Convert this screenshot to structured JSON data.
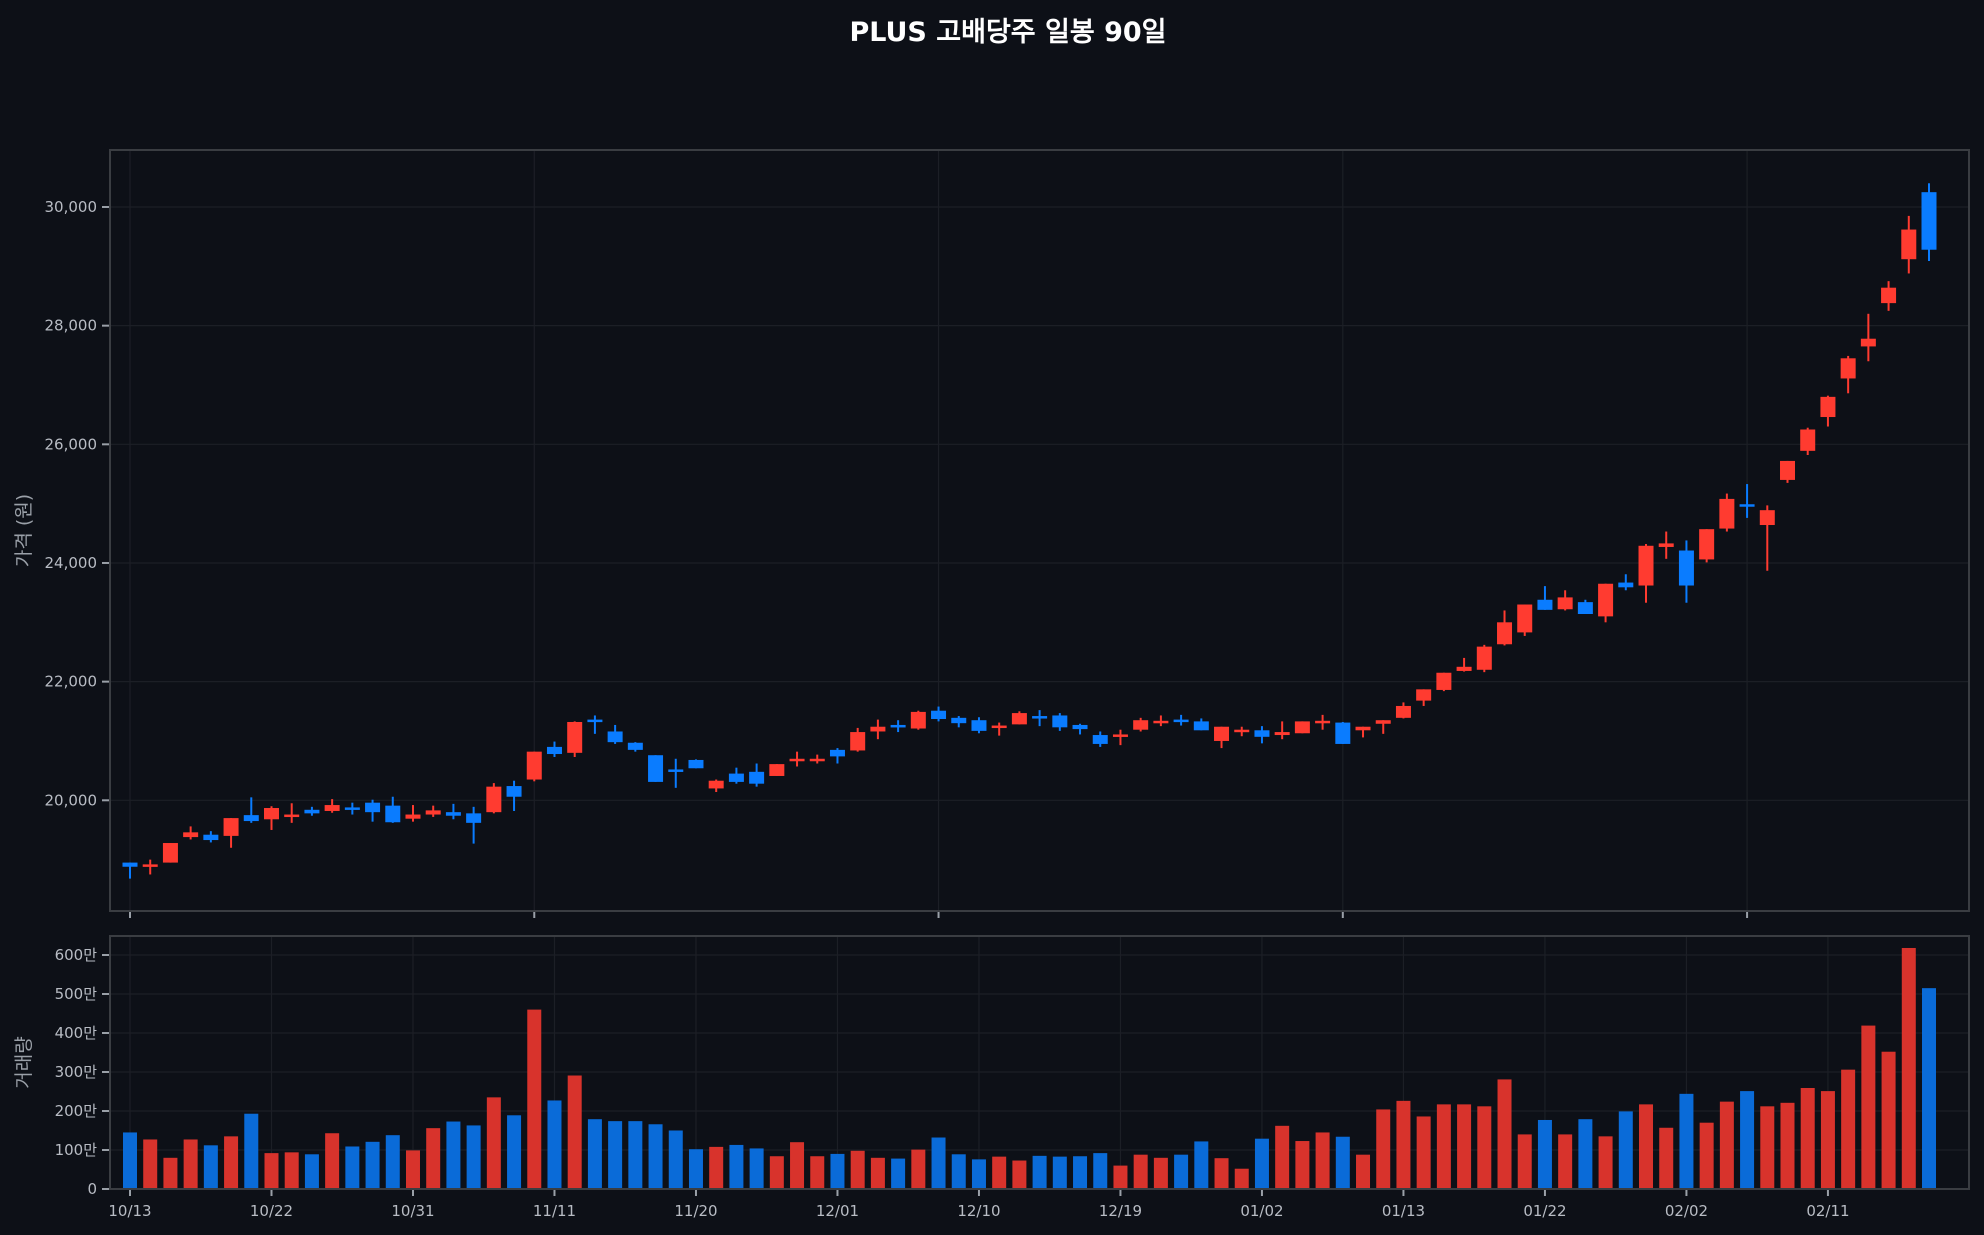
{
  "title": "PLUS 고배당주 일봉 90일",
  "colors": {
    "up": "#ff3b30",
    "down": "#0a7cff",
    "vol_up": "#d8332c",
    "vol_down": "#0a6bd8",
    "background": "#0d1017",
    "frame": "#3a3d42",
    "grid": "#1c1f26"
  },
  "chart_data": [
    {
      "type": "candlestick",
      "title": "PLUS 고배당주 일봉 90일",
      "ylabel": "가격 (원)",
      "yticks": [
        20000,
        22000,
        24000,
        26000,
        28000,
        30000
      ],
      "ytick_labels": [
        "20,000",
        "22,000",
        "24,000",
        "26,000",
        "28,000",
        "30,000"
      ],
      "ylim": [
        18100,
        31000
      ],
      "grid": true,
      "ohlc": [
        [
          18950,
          18950,
          18680,
          18880
        ],
        [
          18880,
          19000,
          18750,
          18920
        ],
        [
          18950,
          19280,
          18950,
          19280
        ],
        [
          19380,
          19560,
          19340,
          19460
        ],
        [
          19420,
          19480,
          19290,
          19330
        ],
        [
          19400,
          19700,
          19200,
          19700
        ],
        [
          19750,
          20050,
          19620,
          19650
        ],
        [
          19680,
          19900,
          19500,
          19870
        ],
        [
          19760,
          19950,
          19620,
          19760
        ],
        [
          19840,
          19890,
          19740,
          19780
        ],
        [
          19820,
          20020,
          19790,
          19920
        ],
        [
          19880,
          19960,
          19760,
          19860
        ],
        [
          19960,
          20010,
          19640,
          19800
        ],
        [
          19910,
          20060,
          19620,
          19630
        ],
        [
          19690,
          19920,
          19640,
          19760
        ],
        [
          19760,
          19910,
          19720,
          19830
        ],
        [
          19800,
          19940,
          19680,
          19740
        ],
        [
          19780,
          19890,
          19270,
          19620
        ],
        [
          19800,
          20290,
          19780,
          20230
        ],
        [
          20240,
          20330,
          19820,
          20060
        ],
        [
          20350,
          20820,
          20320,
          20820
        ],
        [
          20900,
          20990,
          20730,
          20780
        ],
        [
          20800,
          21330,
          20730,
          21320
        ],
        [
          21360,
          21430,
          21120,
          21350
        ],
        [
          21160,
          21270,
          20950,
          20980
        ],
        [
          20970,
          20980,
          20820,
          20850
        ],
        [
          20760,
          20760,
          20310,
          20310
        ],
        [
          20520,
          20700,
          20210,
          20510
        ],
        [
          20680,
          20690,
          20540,
          20540
        ],
        [
          20200,
          20350,
          20140,
          20330
        ],
        [
          20450,
          20550,
          20280,
          20310
        ],
        [
          20480,
          20620,
          20230,
          20280
        ],
        [
          20410,
          20610,
          20410,
          20610
        ],
        [
          20690,
          20820,
          20570,
          20700
        ],
        [
          20680,
          20770,
          20620,
          20700
        ],
        [
          20850,
          20880,
          20620,
          20740
        ],
        [
          20840,
          21220,
          20820,
          21150
        ],
        [
          21160,
          21360,
          21030,
          21240
        ],
        [
          21270,
          21350,
          21150,
          21250
        ],
        [
          21210,
          21510,
          21190,
          21490
        ],
        [
          21510,
          21580,
          21330,
          21370
        ],
        [
          21390,
          21420,
          21230,
          21300
        ],
        [
          21350,
          21400,
          21130,
          21170
        ],
        [
          21220,
          21310,
          21090,
          21260
        ],
        [
          21280,
          21500,
          21280,
          21470
        ],
        [
          21420,
          21520,
          21250,
          21410
        ],
        [
          21430,
          21470,
          21170,
          21230
        ],
        [
          21270,
          21290,
          21110,
          21200
        ],
        [
          21100,
          21160,
          20900,
          20950
        ],
        [
          21100,
          21190,
          20930,
          21110
        ],
        [
          21190,
          21390,
          21160,
          21350
        ],
        [
          21340,
          21430,
          21250,
          21340
        ],
        [
          21360,
          21440,
          21260,
          21330
        ],
        [
          21330,
          21380,
          21180,
          21180
        ],
        [
          21000,
          21240,
          20880,
          21240
        ],
        [
          21180,
          21240,
          21080,
          21190
        ],
        [
          21180,
          21250,
          20960,
          21070
        ],
        [
          21100,
          21330,
          21030,
          21150
        ],
        [
          21130,
          21330,
          21130,
          21330
        ],
        [
          21330,
          21440,
          21190,
          21340
        ],
        [
          21310,
          21320,
          20950,
          20950
        ],
        [
          21180,
          21240,
          21060,
          21240
        ],
        [
          21290,
          21350,
          21120,
          21350
        ],
        [
          21390,
          21650,
          21380,
          21590
        ],
        [
          21680,
          21870,
          21590,
          21870
        ],
        [
          21860,
          22150,
          21840,
          22150
        ],
        [
          22180,
          22400,
          22170,
          22250
        ],
        [
          22200,
          22620,
          22160,
          22590
        ],
        [
          22630,
          23200,
          22610,
          23000
        ],
        [
          22830,
          23300,
          22770,
          23300
        ],
        [
          23380,
          23610,
          23210,
          23210
        ],
        [
          23220,
          23540,
          23200,
          23420
        ],
        [
          23340,
          23380,
          23140,
          23140
        ],
        [
          23100,
          23650,
          23000,
          23650
        ],
        [
          23670,
          23810,
          23540,
          23590
        ],
        [
          23620,
          24320,
          23330,
          24290
        ],
        [
          24270,
          24530,
          24070,
          24330
        ],
        [
          24210,
          24380,
          23330,
          23620
        ],
        [
          24060,
          24570,
          24010,
          24570
        ],
        [
          24580,
          25170,
          24530,
          25080
        ],
        [
          24990,
          25330,
          24760,
          24950
        ],
        [
          24640,
          24970,
          23870,
          24890
        ],
        [
          25400,
          25720,
          25350,
          25720
        ],
        [
          25890,
          26280,
          25820,
          26250
        ],
        [
          26460,
          26820,
          26300,
          26800
        ],
        [
          27110,
          27490,
          26860,
          27450
        ],
        [
          27650,
          28200,
          27400,
          27780
        ],
        [
          28380,
          28750,
          28250,
          28640
        ],
        [
          29120,
          29850,
          28880,
          29620
        ],
        [
          30250,
          30400,
          29090,
          29280
        ]
      ],
      "x_tick_indices": [
        0,
        20,
        40,
        60,
        80
      ]
    },
    {
      "type": "bar",
      "ylabel": "거래량",
      "yticks": [
        0,
        100,
        200,
        300,
        400,
        500,
        600
      ],
      "ytick_labels": [
        "0",
        "100만",
        "200만",
        "300만",
        "400만",
        "500만",
        "600만"
      ],
      "ylim": [
        0,
        650
      ],
      "unit": "만",
      "x_tick_indices": [
        0,
        7,
        14,
        21,
        28,
        35,
        42,
        49,
        56,
        63,
        70,
        77,
        84
      ],
      "x_tick_labels": [
        "10/13",
        "10/22",
        "10/31",
        "11/11",
        "11/20",
        "12/01",
        "12/10",
        "12/19",
        "01/02",
        "01/13",
        "01/22",
        "02/02",
        "02/11"
      ],
      "values": [
        145,
        127,
        80,
        127,
        112,
        135,
        193,
        92,
        94,
        89,
        143,
        109,
        121,
        138,
        99,
        156,
        173,
        163,
        235,
        189,
        460,
        227,
        291,
        179,
        174,
        174,
        166,
        150,
        102,
        108,
        113,
        104,
        84,
        120,
        84,
        90,
        98,
        80,
        78,
        101,
        132,
        89,
        76,
        83,
        73,
        85,
        83,
        84,
        92,
        60,
        88,
        80,
        88,
        122,
        79,
        52,
        129,
        162,
        123,
        145,
        134,
        88,
        204,
        226,
        186,
        217,
        217,
        212,
        281,
        140,
        177,
        140,
        179,
        135,
        199,
        217,
        157,
        244,
        170,
        224,
        251,
        212,
        221,
        259,
        251,
        306,
        419,
        352,
        618,
        515
      ]
    }
  ],
  "price_axis": {
    "label": "가격 (원)",
    "ticks": [
      "20,000",
      "22,000",
      "24,000",
      "26,000",
      "28,000",
      "30,000"
    ]
  },
  "volume_axis": {
    "label": "거래량",
    "ticks": [
      "0",
      "100만",
      "200만",
      "300만",
      "400만",
      "500만",
      "600만"
    ]
  }
}
